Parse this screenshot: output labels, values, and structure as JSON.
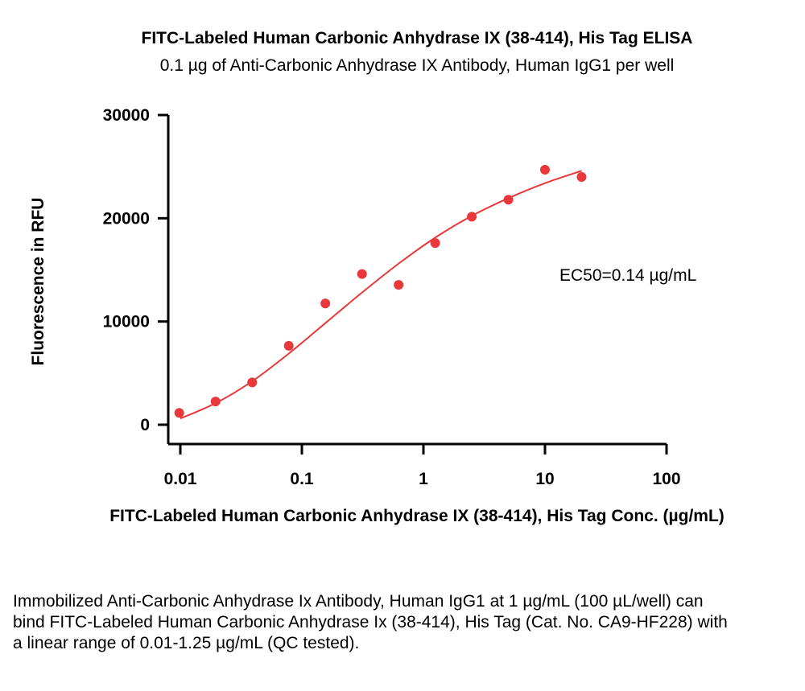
{
  "chart_data": {
    "type": "scatter",
    "title": "FITC-Labeled Human Carbonic Anhydrase IX (38-414), His Tag ELISA",
    "subtitle": "0.1 µg of Anti-Carbonic Anhydrase IX Antibody, Human IgG1 per well",
    "xlabel": "FITC-Labeled Human Carbonic Anhydrase IX (38-414), His Tag Conc. (µg/mL)",
    "ylabel": "Fluorescence in RFU",
    "x_scale": "log",
    "xlim": [
      0.01,
      100
    ],
    "ylim": [
      0,
      30000
    ],
    "x_ticks": [
      "0.01",
      "0.1",
      "1",
      "10",
      "100"
    ],
    "y_ticks": [
      "0",
      "10000",
      "20000",
      "30000"
    ],
    "grid": false,
    "point_color": "#e8383b",
    "curve_color": "#e8383b",
    "series": [
      {
        "x": [
          0.0098,
          0.0195,
          0.039,
          0.078,
          0.156,
          0.3125,
          0.625,
          1.25,
          2.5,
          5,
          10,
          20
        ],
        "y": [
          1150,
          2250,
          4100,
          7650,
          11750,
          14600,
          13550,
          17600,
          20150,
          21800,
          24700,
          24000
        ]
      }
    ],
    "fit_curve": {
      "x": [
        0.01,
        0.02,
        0.04,
        0.08,
        0.16,
        0.32,
        0.64,
        1.28,
        2.56,
        5.12,
        10,
        20
      ],
      "y": [
        600,
        2150,
        4300,
        7000,
        9950,
        12900,
        15700,
        18200,
        20300,
        22000,
        23400,
        24600
      ]
    },
    "annotation": "EC50=0.14 µg/mL"
  },
  "caption": "Immobilized Anti-Carbonic Anhydrase Ix Antibody, Human IgG1 at 1 µg/mL (100 µL/well) can bind FITC-Labeled Human Carbonic Anhydrase Ix (38-414), His Tag (Cat. No. CA9-HF228) with a linear range of 0.01-1.25 µg/mL (QC tested)."
}
